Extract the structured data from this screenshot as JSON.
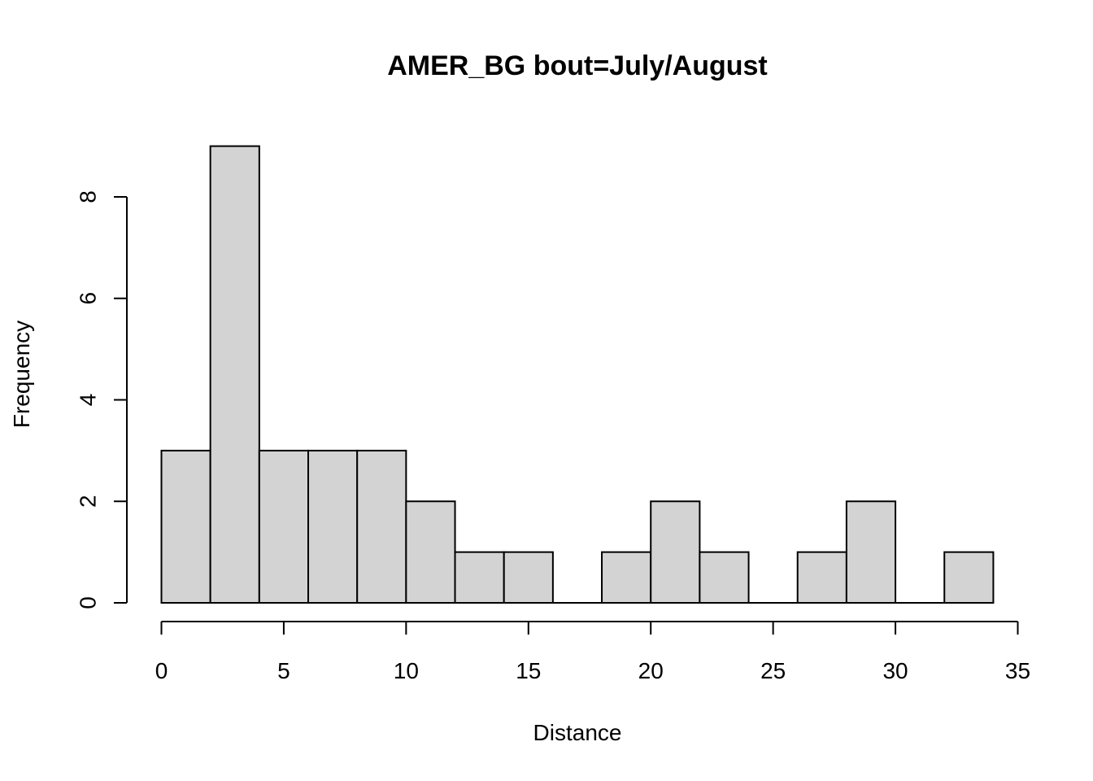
{
  "chart_data": {
    "type": "bar",
    "title": "AMER_BG  bout=July/August",
    "xlabel": "Distance",
    "ylabel": "Frequency",
    "bin_edges": [
      0,
      2,
      4,
      6,
      8,
      10,
      12,
      14,
      16,
      18,
      20,
      22,
      24,
      26,
      28,
      30,
      32,
      34
    ],
    "values": [
      3,
      9,
      3,
      3,
      3,
      2,
      1,
      1,
      0,
      1,
      2,
      1,
      0,
      1,
      2,
      0,
      1
    ],
    "x_ticks": [
      0,
      5,
      10,
      15,
      20,
      25,
      30,
      35
    ],
    "y_ticks": [
      0,
      2,
      4,
      6,
      8
    ],
    "xlim": [
      0,
      35
    ],
    "ylim": [
      0,
      9
    ],
    "bar_color": "#d3d3d3",
    "grid": false
  }
}
